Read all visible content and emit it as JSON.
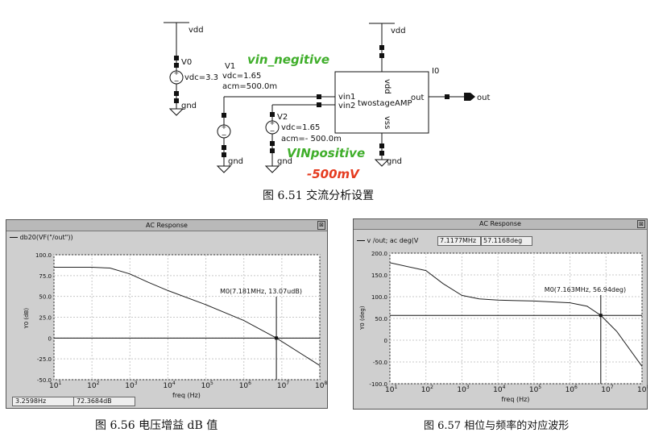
{
  "schematic": {
    "vdd_left": "vdd",
    "vdd_right": "vdd",
    "v0_name": "V0",
    "v0_vdc": "vdc=3.3",
    "gnd_v0": "gnd",
    "v1_name": "V1",
    "v1_vdc": "vdc=1.65",
    "v1_acm": "acm=500.0m",
    "gnd_v1": "gnd",
    "v2_name": "V2",
    "v2_vdc": "vdc=1.65",
    "v2_acm": "acm=- 500.0m",
    "gnd_v2": "gnd",
    "amp_inst": "I0",
    "amp_name": "twostageAMP",
    "pin_vin1": "vin1",
    "pin_vin2": "vin2",
    "pin_vdd": "vdd",
    "pin_vss": "vss",
    "pin_out": "out",
    "out_label": "out",
    "gnd_amp": "gnd",
    "note_vin_negitive": "vin_negitive",
    "note_vinpositive": "VINpositive",
    "note_500mv": "-500mV"
  },
  "captions": {
    "fig651": "图 6.51    交流分析设置",
    "fig656": "图 6.56    电压增益 dB 值",
    "fig657": "图 6.57    相位与频率的对应波形"
  },
  "gain_window": {
    "title": "AC Response",
    "legend": "db20(VF(\"/out\"))",
    "marker": "M0(7.181MHz, 13.07udB)",
    "ylabel": "Y0 (dB)",
    "xlabel": "freq (Hz)",
    "status_x": "3.2598Hz",
    "status_y": "72.3684dB"
  },
  "phase_window": {
    "title": "AC Response",
    "legend": "v /out; ac deg(V",
    "readout_x": "7.1177MHz",
    "readout_y": "57.1168deg",
    "marker": "M0(7.163MHz, 56.94deg)",
    "ylabel": "Y0 (deg)",
    "xlabel": "freq (Hz)"
  },
  "chart_data": [
    {
      "type": "line",
      "title": "AC Response",
      "xlabel": "freq (Hz)",
      "ylabel": "Y0 (dB)",
      "xscale": "log",
      "xlim": [
        10,
        100000000
      ],
      "ylim": [
        -50,
        100
      ],
      "xticks": [
        "10^1",
        "10^2",
        "10^3",
        "10^4",
        "10^5",
        "10^6",
        "10^7",
        "10^8"
      ],
      "yticks": [
        "100.0",
        "75.0",
        "50.0",
        "25.0",
        "0",
        "-25.0",
        "-50.0"
      ],
      "grid": true,
      "series": [
        {
          "name": "db20(VF(\"/out\"))",
          "x": [
            10,
            100,
            300,
            1000,
            3000,
            10000,
            100000,
            1000000,
            7181000,
            100000000
          ],
          "y": [
            85,
            85,
            84,
            77,
            67,
            57,
            40,
            21,
            0,
            -33
          ]
        }
      ]
    },
    {
      "type": "line",
      "title": "AC Response",
      "xlabel": "freq (Hz)",
      "ylabel": "Y0 (deg)",
      "xscale": "log",
      "xlim": [
        10,
        100000000
      ],
      "ylim": [
        -100,
        200
      ],
      "xticks": [
        "10^1",
        "10^2",
        "10^3",
        "10^4",
        "10^5",
        "10^6",
        "10^7",
        "10^8"
      ],
      "yticks": [
        "200.0",
        "150.0",
        "100.0",
        "50.0",
        "0",
        "-50.0",
        "-100.0"
      ],
      "grid": true,
      "series": [
        {
          "name": "v /out; ac deg(V",
          "x": [
            10,
            100,
            300,
            1000,
            3000,
            10000,
            100000,
            1000000,
            3000000,
            7163000,
            20000000,
            100000000
          ],
          "y": [
            178,
            160,
            130,
            103,
            95,
            92,
            90,
            86,
            78,
            57,
            20,
            -60
          ]
        }
      ]
    }
  ]
}
